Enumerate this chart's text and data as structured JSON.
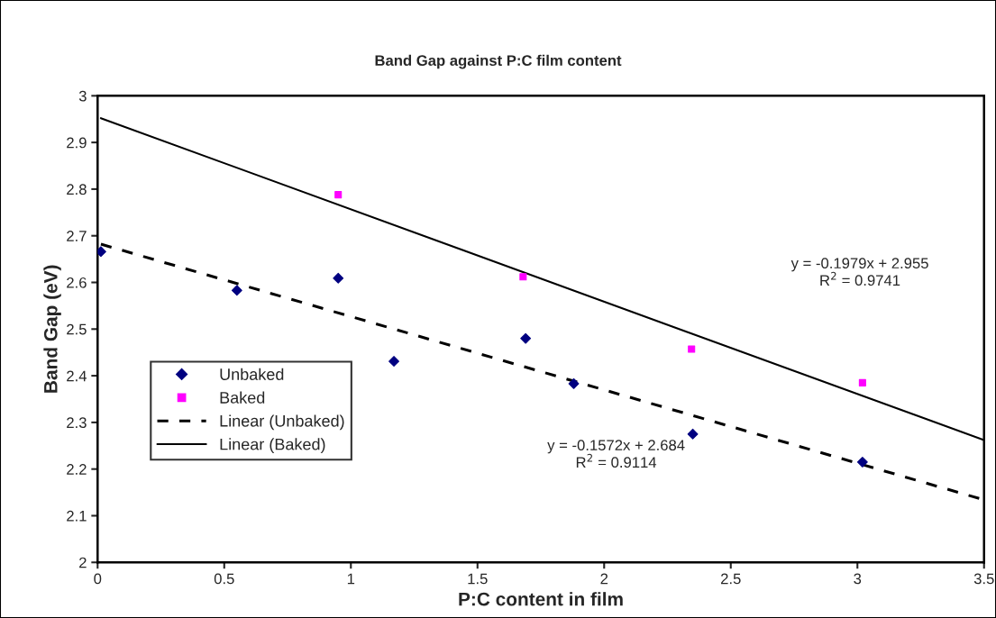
{
  "chart_data": {
    "type": "scatter",
    "title": "Band Gap against P:C film content",
    "xlabel": "P:C content in film",
    "ylabel": "Band Gap (eV)",
    "xlim": [
      0,
      3.5
    ],
    "xticks": [
      0,
      0.5,
      1,
      1.5,
      2,
      2.5,
      3,
      3.5
    ],
    "ylim": [
      2,
      3
    ],
    "yticks": [
      2,
      2.1,
      2.2,
      2.3,
      2.4,
      2.5,
      2.6,
      2.7,
      2.8,
      2.9,
      3
    ],
    "grid": false,
    "legend": "bottom left",
    "series": [
      {
        "name": "Unbaked",
        "marker": "diamond",
        "color": "#000080",
        "x": [
          0.013,
          0.55,
          0.95,
          1.17,
          1.69,
          1.88,
          2.35,
          3.02
        ],
        "values": [
          2.666,
          2.583,
          2.609,
          2.431,
          2.48,
          2.383,
          2.275,
          2.215
        ]
      },
      {
        "name": "Baked",
        "marker": "square",
        "color": "#ff00ff",
        "x": [
          0.95,
          1.68,
          2.345,
          3.02
        ],
        "values": [
          2.788,
          2.612,
          2.457,
          2.385
        ]
      },
      {
        "name": "Linear (Unbaked)",
        "type": "line",
        "marker": "none",
        "line_style": "dashed",
        "color": "#000000",
        "x": [
          0.013,
          3.5
        ],
        "values": [
          2.682,
          2.134
        ]
      },
      {
        "name": "Linear (Baked)",
        "type": "line",
        "marker": "none",
        "line_style": "solid",
        "color": "#000000",
        "x": [
          0.013,
          3.5
        ],
        "values": [
          2.952,
          2.262
        ]
      }
    ],
    "annotations": [
      "y = -0.1979x + 2.955\nR$^{2}$ = 0.9741",
      "y = -0.1572x + 2.684\nR$^{2}$ = 0.9114"
    ]
  }
}
